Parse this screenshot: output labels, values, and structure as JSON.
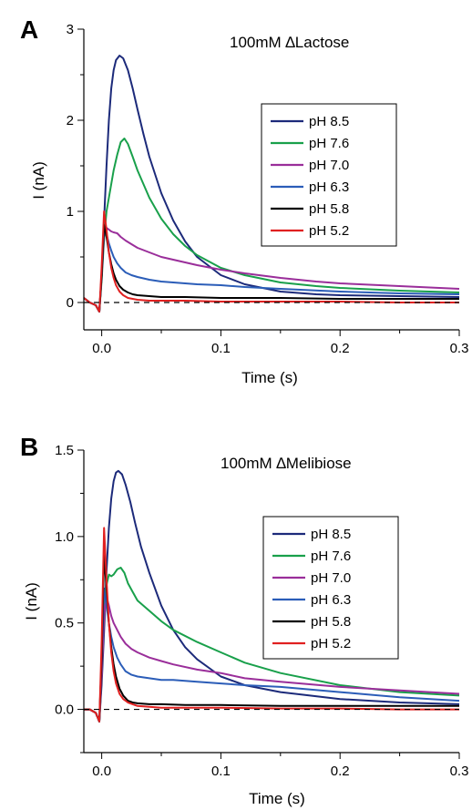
{
  "chart_data": [
    {
      "type": "line",
      "panel_letter": "A",
      "annotation": "100mM ∆Lactose",
      "xlabel": "Time (s)",
      "ylabel": "I (nA)",
      "xlim": [
        -0.015,
        0.3
      ],
      "ylim": [
        -0.3,
        3.0
      ],
      "x_ticks": [
        0.0,
        0.1,
        0.2,
        0.3
      ],
      "x_tick_labels": [
        "0.0",
        "0.1",
        "0.2",
        "0.3"
      ],
      "y_ticks": [
        0,
        1,
        2,
        3
      ],
      "y_tick_labels": [
        "0",
        "1",
        "2",
        "3"
      ],
      "baseline_dashed_at": 0,
      "legend_position": "right",
      "series": [
        {
          "name": "pH 8.5",
          "color": "#1c2a7a",
          "x": [
            -0.015,
            -0.01,
            -0.005,
            -0.002,
            0,
            0.002,
            0.004,
            0.006,
            0.008,
            0.01,
            0.012,
            0.015,
            0.018,
            0.022,
            0.026,
            0.03,
            0.035,
            0.04,
            0.05,
            0.06,
            0.07,
            0.08,
            0.1,
            0.12,
            0.15,
            0.18,
            0.2,
            0.25,
            0.3
          ],
          "y": [
            0.05,
            0.0,
            -0.03,
            -0.1,
            0.3,
            0.9,
            1.5,
            2.0,
            2.35,
            2.55,
            2.66,
            2.71,
            2.68,
            2.55,
            2.35,
            2.12,
            1.85,
            1.6,
            1.2,
            0.9,
            0.67,
            0.5,
            0.3,
            0.2,
            0.12,
            0.09,
            0.08,
            0.07,
            0.06
          ]
        },
        {
          "name": "pH 7.6",
          "color": "#19a04b",
          "x": [
            -0.015,
            -0.01,
            -0.005,
            -0.002,
            0,
            0.002,
            0.004,
            0.006,
            0.008,
            0.01,
            0.013,
            0.016,
            0.019,
            0.022,
            0.026,
            0.03,
            0.035,
            0.04,
            0.05,
            0.06,
            0.07,
            0.08,
            0.1,
            0.12,
            0.15,
            0.18,
            0.2,
            0.25,
            0.3
          ],
          "y": [
            0.05,
            0.0,
            -0.03,
            -0.1,
            0.25,
            0.7,
            1.0,
            1.15,
            1.3,
            1.45,
            1.62,
            1.76,
            1.8,
            1.74,
            1.6,
            1.45,
            1.3,
            1.15,
            0.92,
            0.75,
            0.62,
            0.52,
            0.38,
            0.3,
            0.22,
            0.18,
            0.16,
            0.13,
            0.11
          ]
        },
        {
          "name": "pH 7.0",
          "color": "#9a2e9a",
          "x": [
            -0.015,
            -0.01,
            -0.005,
            -0.002,
            0,
            0.002,
            0.004,
            0.006,
            0.008,
            0.01,
            0.013,
            0.016,
            0.02,
            0.025,
            0.03,
            0.04,
            0.05,
            0.06,
            0.08,
            0.1,
            0.12,
            0.15,
            0.18,
            0.2,
            0.25,
            0.3
          ],
          "y": [
            0.05,
            0.0,
            -0.03,
            -0.1,
            0.3,
            0.75,
            0.82,
            0.8,
            0.78,
            0.77,
            0.76,
            0.72,
            0.68,
            0.64,
            0.6,
            0.55,
            0.5,
            0.47,
            0.41,
            0.36,
            0.32,
            0.27,
            0.23,
            0.21,
            0.18,
            0.15
          ]
        },
        {
          "name": "pH 6.3",
          "color": "#2b5db8",
          "x": [
            -0.015,
            -0.01,
            -0.005,
            -0.002,
            0,
            0.002,
            0.004,
            0.006,
            0.008,
            0.01,
            0.013,
            0.016,
            0.02,
            0.025,
            0.03,
            0.04,
            0.05,
            0.06,
            0.08,
            0.1,
            0.12,
            0.15,
            0.2,
            0.25,
            0.3
          ],
          "y": [
            0.05,
            0.0,
            -0.03,
            -0.1,
            0.3,
            0.8,
            0.75,
            0.65,
            0.57,
            0.5,
            0.43,
            0.38,
            0.33,
            0.3,
            0.28,
            0.25,
            0.23,
            0.22,
            0.2,
            0.19,
            0.17,
            0.15,
            0.12,
            0.1,
            0.09
          ]
        },
        {
          "name": "pH 5.8",
          "color": "#000000",
          "x": [
            -0.015,
            -0.01,
            -0.005,
            -0.002,
            0,
            0.002,
            0.004,
            0.006,
            0.008,
            0.01,
            0.012,
            0.015,
            0.018,
            0.022,
            0.026,
            0.03,
            0.04,
            0.05,
            0.07,
            0.1,
            0.15,
            0.2,
            0.25,
            0.3
          ],
          "y": [
            0.05,
            0.0,
            -0.03,
            -0.1,
            0.3,
            0.85,
            0.72,
            0.55,
            0.42,
            0.32,
            0.25,
            0.18,
            0.14,
            0.11,
            0.09,
            0.08,
            0.07,
            0.06,
            0.06,
            0.05,
            0.05,
            0.04,
            0.04,
            0.04
          ]
        },
        {
          "name": "pH 5.2",
          "color": "#e02020",
          "x": [
            -0.015,
            -0.01,
            -0.005,
            -0.002,
            0,
            0.002,
            0.004,
            0.006,
            0.008,
            0.01,
            0.012,
            0.015,
            0.018,
            0.022,
            0.026,
            0.03,
            0.04,
            0.05,
            0.07,
            0.1,
            0.15,
            0.2,
            0.25,
            0.3
          ],
          "y": [
            0.05,
            0.0,
            -0.03,
            -0.1,
            0.4,
            1.0,
            0.8,
            0.55,
            0.38,
            0.27,
            0.19,
            0.12,
            0.08,
            0.05,
            0.04,
            0.03,
            0.02,
            0.02,
            0.02,
            0.01,
            0.01,
            0.01,
            0.0,
            0.0
          ]
        }
      ]
    },
    {
      "type": "line",
      "panel_letter": "B",
      "annotation": "100mM ∆Melibiose",
      "xlabel": "Time (s)",
      "ylabel": "I (nA)",
      "xlim": [
        -0.015,
        0.3
      ],
      "ylim": [
        -0.25,
        1.5
      ],
      "x_ticks": [
        0.0,
        0.1,
        0.2,
        0.3
      ],
      "x_tick_labels": [
        "0.0",
        "0.1",
        "0.2",
        "0.3"
      ],
      "y_ticks": [
        0.0,
        0.5,
        1.0,
        1.5
      ],
      "y_tick_labels": [
        "0.0",
        "0.5",
        "1.0",
        "1.5"
      ],
      "baseline_dashed_at": 0,
      "legend_position": "right",
      "series": [
        {
          "name": "pH 8.5",
          "color": "#1c2a7a",
          "x": [
            -0.015,
            -0.01,
            -0.005,
            -0.002,
            0,
            0.002,
            0.004,
            0.006,
            0.008,
            0.01,
            0.012,
            0.014,
            0.017,
            0.02,
            0.024,
            0.028,
            0.033,
            0.04,
            0.05,
            0.06,
            0.07,
            0.08,
            0.1,
            0.12,
            0.15,
            0.2,
            0.25,
            0.3
          ],
          "y": [
            0.0,
            0.0,
            -0.02,
            -0.07,
            0.15,
            0.45,
            0.8,
            1.05,
            1.22,
            1.32,
            1.37,
            1.38,
            1.36,
            1.3,
            1.2,
            1.08,
            0.94,
            0.79,
            0.6,
            0.46,
            0.36,
            0.29,
            0.19,
            0.14,
            0.1,
            0.06,
            0.04,
            0.03
          ]
        },
        {
          "name": "pH 7.6",
          "color": "#19a04b",
          "x": [
            -0.015,
            -0.01,
            -0.005,
            -0.002,
            0,
            0.002,
            0.004,
            0.006,
            0.008,
            0.01,
            0.013,
            0.016,
            0.019,
            0.022,
            0.026,
            0.03,
            0.04,
            0.05,
            0.06,
            0.08,
            0.1,
            0.12,
            0.15,
            0.2,
            0.25,
            0.3
          ],
          "y": [
            0.0,
            0.0,
            -0.02,
            -0.07,
            0.2,
            0.55,
            0.72,
            0.78,
            0.77,
            0.78,
            0.81,
            0.82,
            0.79,
            0.73,
            0.68,
            0.63,
            0.57,
            0.51,
            0.46,
            0.39,
            0.33,
            0.27,
            0.21,
            0.14,
            0.1,
            0.08
          ]
        },
        {
          "name": "pH 7.0",
          "color": "#9a2e9a",
          "x": [
            -0.015,
            -0.01,
            -0.005,
            -0.002,
            0,
            0.002,
            0.004,
            0.006,
            0.008,
            0.01,
            0.013,
            0.016,
            0.02,
            0.025,
            0.03,
            0.04,
            0.05,
            0.06,
            0.08,
            0.1,
            0.12,
            0.15,
            0.2,
            0.25,
            0.3
          ],
          "y": [
            0.0,
            0.0,
            -0.02,
            -0.07,
            0.2,
            0.55,
            0.65,
            0.6,
            0.54,
            0.5,
            0.46,
            0.42,
            0.38,
            0.35,
            0.33,
            0.3,
            0.28,
            0.26,
            0.23,
            0.21,
            0.18,
            0.16,
            0.13,
            0.11,
            0.09
          ]
        },
        {
          "name": "pH 6.3",
          "color": "#2b5db8",
          "x": [
            -0.015,
            -0.01,
            -0.005,
            -0.002,
            0,
            0.002,
            0.004,
            0.006,
            0.008,
            0.01,
            0.013,
            0.016,
            0.02,
            0.025,
            0.03,
            0.04,
            0.05,
            0.06,
            0.08,
            0.1,
            0.12,
            0.15,
            0.2,
            0.25,
            0.3
          ],
          "y": [
            0.0,
            0.0,
            -0.02,
            -0.07,
            0.3,
            0.7,
            0.6,
            0.5,
            0.42,
            0.36,
            0.3,
            0.26,
            0.22,
            0.2,
            0.19,
            0.18,
            0.17,
            0.17,
            0.16,
            0.15,
            0.14,
            0.13,
            0.1,
            0.07,
            0.05
          ]
        },
        {
          "name": "pH 5.8",
          "color": "#000000",
          "x": [
            -0.015,
            -0.01,
            -0.005,
            -0.002,
            0,
            0.002,
            0.004,
            0.006,
            0.008,
            0.01,
            0.012,
            0.015,
            0.018,
            0.022,
            0.026,
            0.03,
            0.04,
            0.05,
            0.07,
            0.1,
            0.15,
            0.2,
            0.25,
            0.3
          ],
          "y": [
            0.0,
            0.0,
            -0.02,
            -0.07,
            0.3,
            0.9,
            0.7,
            0.5,
            0.36,
            0.26,
            0.19,
            0.12,
            0.08,
            0.05,
            0.04,
            0.035,
            0.03,
            0.03,
            0.025,
            0.025,
            0.02,
            0.02,
            0.02,
            0.02
          ]
        },
        {
          "name": "pH 5.2",
          "color": "#e02020",
          "x": [
            -0.015,
            -0.01,
            -0.005,
            -0.002,
            0,
            0.002,
            0.004,
            0.006,
            0.008,
            0.01,
            0.012,
            0.015,
            0.018,
            0.022,
            0.026,
            0.03,
            0.04,
            0.05,
            0.07,
            0.1,
            0.15,
            0.2,
            0.25,
            0.3
          ],
          "y": [
            0.0,
            0.0,
            -0.02,
            -0.07,
            0.4,
            1.05,
            0.75,
            0.5,
            0.33,
            0.22,
            0.15,
            0.09,
            0.06,
            0.04,
            0.03,
            0.02,
            0.015,
            0.01,
            0.01,
            0.01,
            0.005,
            0.005,
            0.0,
            0.0
          ]
        }
      ]
    }
  ]
}
